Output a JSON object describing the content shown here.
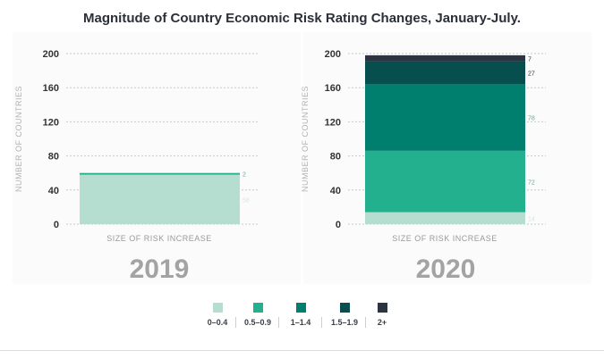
{
  "title": "Magnitude of Country Economic Risk Rating Changes, January-July.",
  "chart_data": [
    {
      "type": "bar",
      "stacked": true,
      "panel": "2019",
      "xlabel": "SIZE OF RISK INCREASE",
      "ylabel": "NUMBER OF COUNTRIES",
      "ylim": [
        0,
        200
      ],
      "yticks": [
        "0",
        "40",
        "80",
        "120",
        "160",
        "200"
      ],
      "series": [
        {
          "name": "0–0.4",
          "value": 58,
          "label": "58"
        },
        {
          "name": "0.5–0.9",
          "value": 2,
          "label": "2"
        }
      ]
    },
    {
      "type": "bar",
      "stacked": true,
      "panel": "2020",
      "xlabel": "SIZE OF RISK INCREASE",
      "ylabel": "NUMBER OF COUNTRIES",
      "ylim": [
        0,
        200
      ],
      "yticks": [
        "0",
        "40",
        "80",
        "120",
        "160",
        "200"
      ],
      "series": [
        {
          "name": "0–0.4",
          "value": 14,
          "label": "14"
        },
        {
          "name": "0.5–0.9",
          "value": 72,
          "label": "72"
        },
        {
          "name": "1–1.4",
          "value": 78,
          "label": "78"
        },
        {
          "name": "1.5–1.9",
          "value": 27,
          "label": "27"
        },
        {
          "name": "2+",
          "value": 7,
          "label": "7"
        }
      ]
    }
  ],
  "years": [
    "2019",
    "2020"
  ],
  "legend": [
    {
      "label": "0–0.4",
      "color": "#b5ddd0"
    },
    {
      "label": "0.5–0.9",
      "color": "#22b08e"
    },
    {
      "label": "1–1.4",
      "color": "#007e6e"
    },
    {
      "label": "1.5–1.9",
      "color": "#064f4e"
    },
    {
      "label": "2+",
      "color": "#2c3441"
    }
  ]
}
